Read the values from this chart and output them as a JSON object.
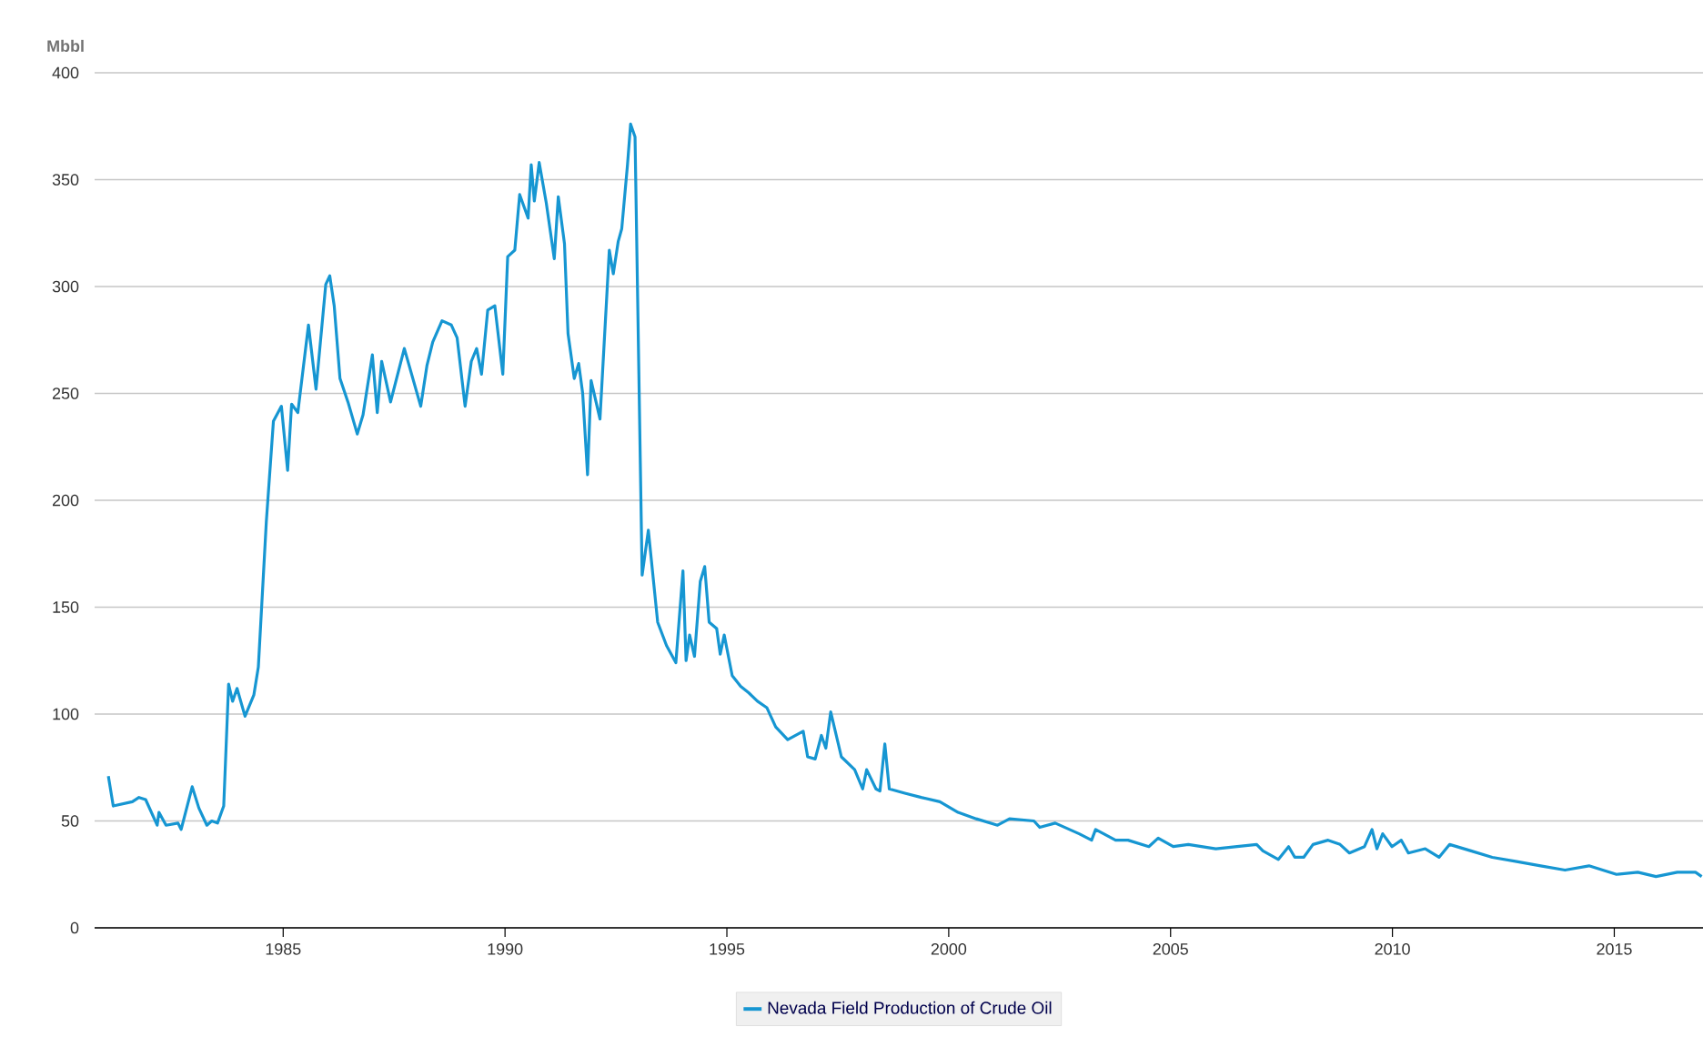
{
  "chart_data": {
    "type": "line",
    "ylabel": "Mbbl",
    "xlim": [
      1980.75,
      2017
    ],
    "ylim": [
      0,
      400
    ],
    "xticks": [
      1985,
      1990,
      1995,
      2000,
      2005,
      2010,
      2015
    ],
    "yticks": [
      0,
      50,
      100,
      150,
      200,
      250,
      300,
      350,
      400
    ],
    "grid": "y",
    "legend": "bottom",
    "marker": "none",
    "line_style": "solid",
    "series": [
      {
        "name": "Nevada Field Production of Crude Oil",
        "color": "#1696d2",
        "x": [
          1981.06,
          1981.17,
          1981.6,
          1981.75,
          1981.9,
          1982.16,
          1982.2,
          1982.36,
          1982.63,
          1982.7,
          1982.95,
          1983.1,
          1983.28,
          1983.39,
          1983.52,
          1983.66,
          1983.77,
          1983.86,
          1983.96,
          1984.14,
          1984.34,
          1984.44,
          1984.62,
          1984.78,
          1984.96,
          1985.1,
          1985.19,
          1985.33,
          1985.57,
          1985.74,
          1985.96,
          1986.05,
          1986.15,
          1986.28,
          1986.46,
          1986.67,
          1986.8,
          1987.01,
          1987.12,
          1987.22,
          1987.42,
          1987.73,
          1988.1,
          1988.24,
          1988.37,
          1988.58,
          1988.79,
          1988.92,
          1989.1,
          1989.24,
          1989.36,
          1989.47,
          1989.61,
          1989.77,
          1989.95,
          1990.06,
          1990.22,
          1990.33,
          1990.52,
          1990.59,
          1990.66,
          1990.77,
          1990.93,
          1991.11,
          1991.2,
          1991.34,
          1991.42,
          1991.56,
          1991.66,
          1991.75,
          1991.86,
          1991.94,
          1992.14,
          1992.35,
          1992.44,
          1992.55,
          1992.63,
          1992.76,
          1992.83,
          1992.93,
          1993.09,
          1993.23,
          1993.44,
          1993.64,
          1993.85,
          1994.01,
          1994.08,
          1994.16,
          1994.27,
          1994.4,
          1994.5,
          1994.6,
          1994.77,
          1994.85,
          1994.94,
          1995.12,
          1995.31,
          1995.49,
          1995.69,
          1995.9,
          1996.1,
          1996.37,
          1996.72,
          1996.82,
          1996.99,
          1997.13,
          1997.23,
          1997.34,
          1997.58,
          1997.88,
          1998.06,
          1998.15,
          1998.36,
          1998.45,
          1998.56,
          1998.66,
          1999.01,
          1999.38,
          1999.8,
          2000.21,
          2000.62,
          2001.1,
          2001.37,
          2001.92,
          2002.05,
          2002.4,
          2002.94,
          2003.22,
          2003.31,
          2003.76,
          2004.04,
          2004.51,
          2004.72,
          2005.06,
          2005.4,
          2006.02,
          2006.5,
          2006.94,
          2007.08,
          2007.43,
          2007.66,
          2007.8,
          2008.0,
          2008.21,
          2008.55,
          2008.82,
          2009.03,
          2009.37,
          2009.54,
          2009.65,
          2009.78,
          2009.99,
          2010.2,
          2010.36,
          2010.74,
          2011.05,
          2011.29,
          2011.77,
          2012.25,
          2012.8,
          2013.34,
          2013.89,
          2014.43,
          2015.05,
          2015.53,
          2015.94,
          2016.42,
          2016.83,
          2016.97
        ],
        "values": [
          71,
          57,
          59,
          61,
          60,
          48,
          54,
          48,
          49,
          46,
          66,
          56,
          48,
          50,
          49,
          57,
          114,
          106,
          112,
          99,
          109,
          122,
          190,
          237,
          244,
          214,
          245,
          241,
          282,
          252,
          301,
          305,
          291,
          257,
          246,
          231,
          240,
          268,
          241,
          265,
          246,
          271,
          244,
          263,
          274,
          284,
          282,
          276,
          244,
          265,
          271,
          259,
          289,
          291,
          259,
          314,
          317,
          343,
          332,
          357,
          340,
          358,
          339,
          313,
          342,
          320,
          278,
          257,
          264,
          250,
          212,
          256,
          238,
          317,
          306,
          321,
          327,
          357,
          376,
          370,
          165,
          186,
          143,
          132,
          124,
          167,
          125,
          137,
          127,
          162,
          169,
          143,
          140,
          128,
          137,
          118,
          113,
          110,
          106,
          103,
          94,
          88,
          92,
          80,
          79,
          90,
          84,
          101,
          80,
          74,
          65,
          74,
          65,
          64,
          86,
          65,
          63,
          61,
          59,
          54,
          51,
          48,
          51,
          50,
          47,
          49,
          44,
          41,
          46,
          41,
          41,
          38,
          42,
          38,
          39,
          37,
          38,
          39,
          36,
          32,
          38,
          33,
          33,
          39,
          41,
          39,
          35,
          38,
          46,
          37,
          44,
          38,
          41,
          35,
          37,
          33,
          39,
          36,
          33,
          31,
          29,
          27,
          29,
          25,
          26,
          24,
          26,
          26,
          24
        ]
      }
    ]
  }
}
